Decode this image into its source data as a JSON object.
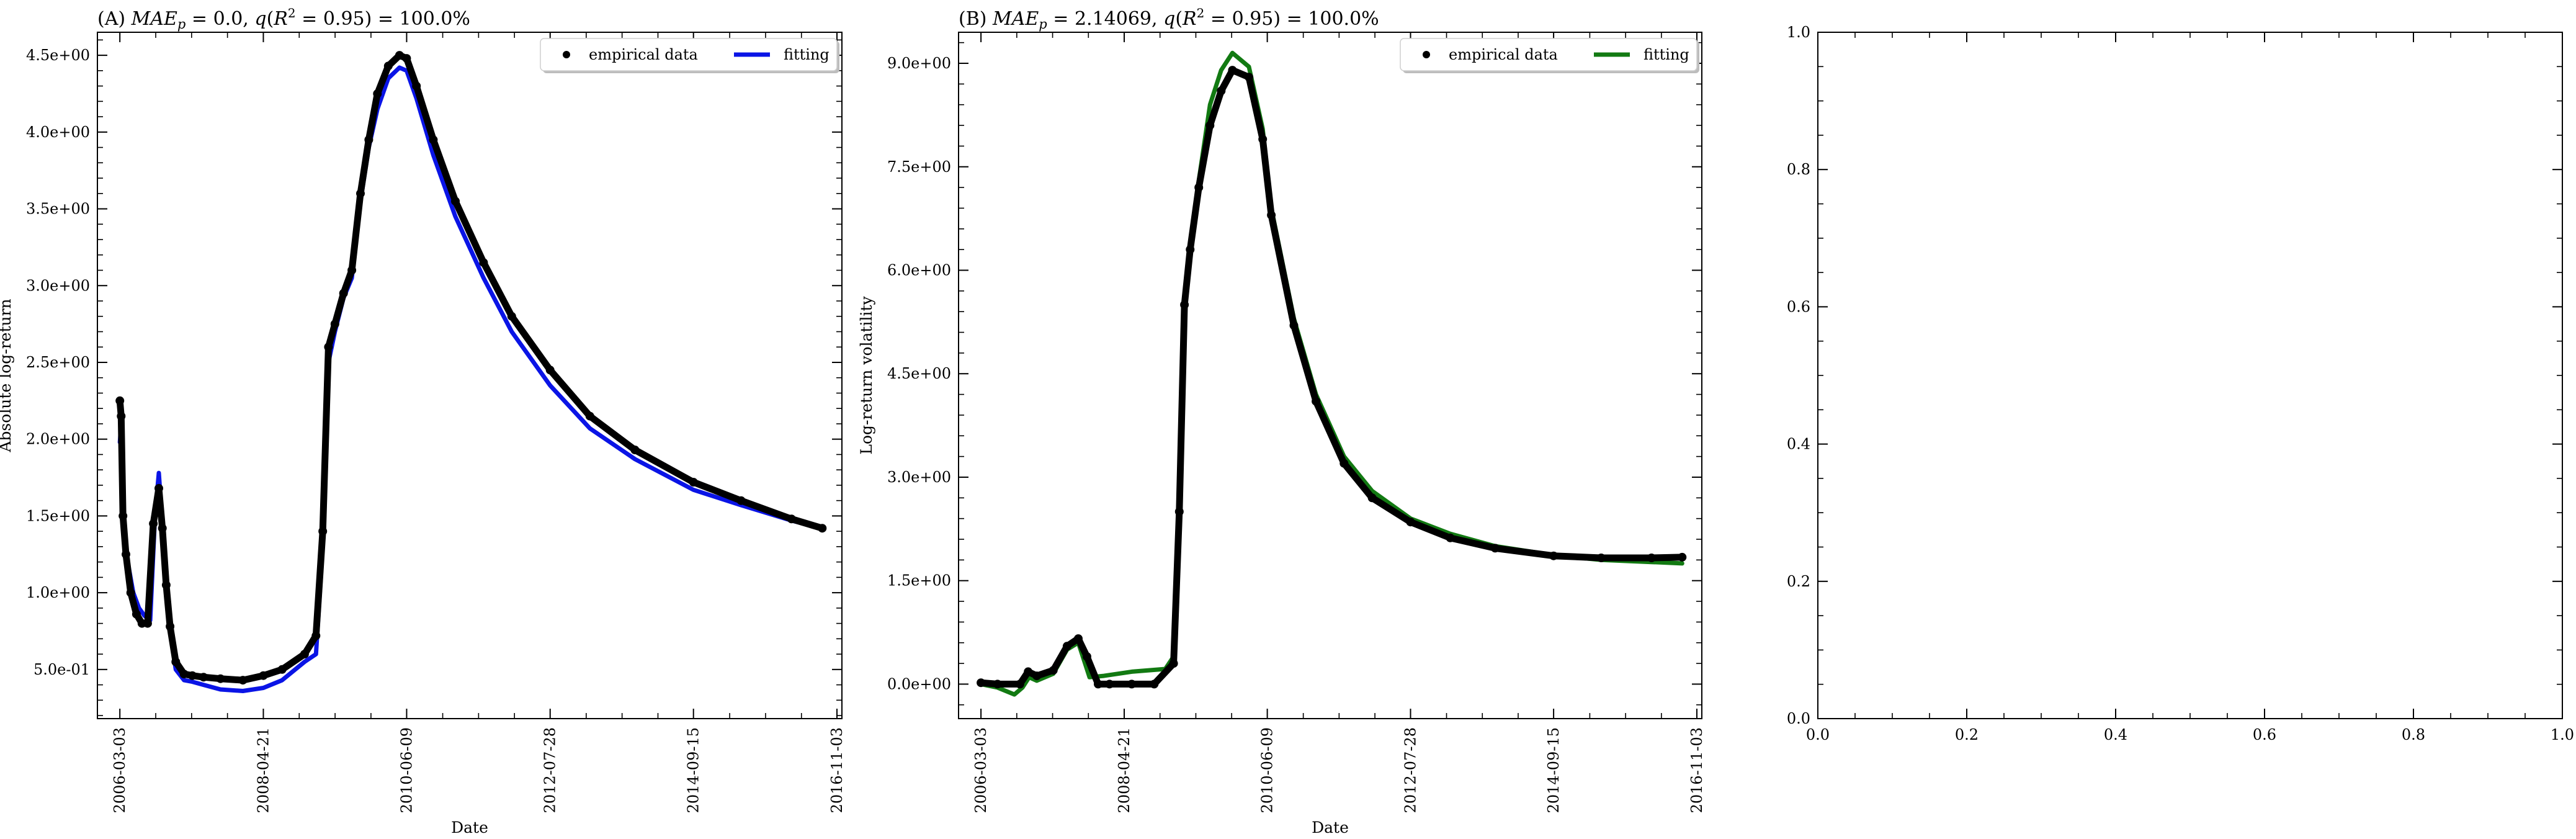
{
  "chart_data": [
    {
      "type": "line",
      "title": "(A) MAE_p = 0.0, q(R² = 0.95) = 100.0%",
      "title_parts": {
        "prefix": "(A) ",
        "mae_sym": "MAE",
        "mae_sub": "p",
        "mae_val": " = 0.0, ",
        "q_sym": "q",
        "q_mid": "(R",
        "q_sup": "2",
        "q_tail": " = 0.95) = 100.0%"
      },
      "xlabel": "Date",
      "ylabel": "Absolute log-return",
      "xlim": [
        "2005-11-01",
        "2016-11-30"
      ],
      "ylim": [
        0.18,
        4.65
      ],
      "x_ticks": [
        "2006-03-03",
        "2008-04-21",
        "2010-06-09",
        "2012-07-28",
        "2014-09-15",
        "2016-11-03"
      ],
      "y_ticks": [
        0.5,
        1.0,
        1.5,
        2.0,
        2.5,
        3.0,
        3.5,
        4.0,
        4.5
      ],
      "y_tick_labels": [
        "5.0e-01",
        "1.0e+00",
        "1.5e+00",
        "2.0e+00",
        "2.5e+00",
        "3.0e+00",
        "3.5e+00",
        "4.0e+00",
        "4.5e+00"
      ],
      "legend": {
        "position": "top-right",
        "entries": [
          "empirical data",
          "fitting"
        ]
      },
      "series": [
        {
          "name": "empirical data",
          "style": "dots",
          "color": "#000000",
          "x": [
            "2006-03-03",
            "2006-03-10",
            "2006-03-20",
            "2006-04-05",
            "2006-05-01",
            "2006-06-01",
            "2006-07-01",
            "2006-08-01",
            "2006-09-01",
            "2006-10-01",
            "2006-10-20",
            "2006-11-10",
            "2006-12-01",
            "2007-01-01",
            "2007-02-15",
            "2007-04-01",
            "2007-06-01",
            "2007-09-01",
            "2008-01-01",
            "2008-04-21",
            "2008-08-01",
            "2008-12-01",
            "2009-02-01",
            "2009-03-10",
            "2009-04-10",
            "2009-05-15",
            "2009-07-01",
            "2009-08-15",
            "2009-10-01",
            "2009-11-15",
            "2010-01-01",
            "2010-03-01",
            "2010-05-01",
            "2010-06-09",
            "2010-08-01",
            "2010-11-01",
            "2011-03-01",
            "2011-08-01",
            "2012-01-01",
            "2012-07-28",
            "2013-03-01",
            "2013-11-01",
            "2014-09-15",
            "2015-06-01",
            "2016-03-01",
            "2016-08-15"
          ],
          "y": [
            2.25,
            2.15,
            1.5,
            1.25,
            1.0,
            0.86,
            0.8,
            0.8,
            1.45,
            1.68,
            1.42,
            1.05,
            0.78,
            0.55,
            0.47,
            0.46,
            0.45,
            0.44,
            0.43,
            0.46,
            0.5,
            0.6,
            0.72,
            1.4,
            2.6,
            2.75,
            2.95,
            3.1,
            3.6,
            3.95,
            4.25,
            4.43,
            4.5,
            4.48,
            4.3,
            3.95,
            3.55,
            3.15,
            2.8,
            2.45,
            2.15,
            1.93,
            1.72,
            1.6,
            1.48,
            1.42
          ]
        },
        {
          "name": "fitting",
          "style": "line",
          "color": "#0a14e6",
          "x": [
            "2006-03-03",
            "2006-03-10",
            "2006-03-25",
            "2006-04-15",
            "2006-05-15",
            "2006-06-15",
            "2006-07-15",
            "2006-08-15",
            "2006-09-10",
            "2006-10-01",
            "2006-10-20",
            "2006-11-10",
            "2006-12-01",
            "2007-01-01",
            "2007-02-15",
            "2007-04-01",
            "2007-06-01",
            "2007-09-01",
            "2008-01-01",
            "2008-04-21",
            "2008-08-01",
            "2008-12-01",
            "2009-02-01",
            "2009-03-10",
            "2009-04-10",
            "2009-05-15",
            "2009-07-01",
            "2009-08-15",
            "2009-10-01",
            "2009-11-15",
            "2010-01-01",
            "2010-03-01",
            "2010-05-01",
            "2010-06-09",
            "2010-08-01",
            "2010-11-01",
            "2011-03-01",
            "2011-08-01",
            "2012-01-01",
            "2012-07-28",
            "2013-03-01",
            "2013-11-01",
            "2014-09-15",
            "2015-06-01",
            "2016-03-01",
            "2016-08-15"
          ],
          "y": [
            1.98,
            2.1,
            1.45,
            1.2,
            1.0,
            0.9,
            0.85,
            0.82,
            1.5,
            1.78,
            1.45,
            1.05,
            0.75,
            0.5,
            0.43,
            0.42,
            0.4,
            0.37,
            0.36,
            0.38,
            0.43,
            0.55,
            0.6,
            1.3,
            2.5,
            2.7,
            2.92,
            3.05,
            3.55,
            3.9,
            4.15,
            4.35,
            4.42,
            4.4,
            4.22,
            3.85,
            3.45,
            3.05,
            2.7,
            2.35,
            2.07,
            1.87,
            1.67,
            1.57,
            1.47,
            1.42
          ]
        }
      ]
    },
    {
      "type": "line",
      "title": "(B) MAE_p = 2.14069, q(R² = 0.95) = 100.0%",
      "title_parts": {
        "prefix": "(B) ",
        "mae_sym": "MAE",
        "mae_sub": "p",
        "mae_val": " = 2.14069, ",
        "q_sym": "q",
        "q_mid": "(R",
        "q_sup": "2",
        "q_tail": " = 0.95) = 100.0%"
      },
      "xlabel": "Date",
      "ylabel": "Log-return volatility",
      "xlim": [
        "2005-11-01",
        "2016-11-30"
      ],
      "ylim": [
        -0.5,
        9.45
      ],
      "x_ticks": [
        "2006-03-03",
        "2008-04-21",
        "2010-06-09",
        "2012-07-28",
        "2014-09-15",
        "2016-11-03"
      ],
      "y_ticks": [
        0,
        1.5,
        3.0,
        4.5,
        6.0,
        7.5,
        9.0
      ],
      "y_tick_labels": [
        "0.0e+00",
        "1.5e+00",
        "3.0e+00",
        "4.5e+00",
        "6.0e+00",
        "7.5e+00",
        "9.0e+00"
      ],
      "legend": {
        "position": "top-right",
        "entries": [
          "empirical data",
          "fitting"
        ]
      },
      "series": [
        {
          "name": "empirical data",
          "style": "dots",
          "color": "#000000",
          "x": [
            "2006-03-03",
            "2006-06-01",
            "2006-10-01",
            "2006-11-15",
            "2007-01-01",
            "2007-04-01",
            "2007-06-15",
            "2007-08-15",
            "2007-10-01",
            "2007-12-01",
            "2008-02-01",
            "2008-06-01",
            "2008-10-01",
            "2009-01-15",
            "2009-02-15",
            "2009-03-15",
            "2009-04-15",
            "2009-06-01",
            "2009-08-01",
            "2009-10-01",
            "2009-12-01",
            "2010-03-01",
            "2010-05-15",
            "2010-07-01",
            "2010-11-01",
            "2011-03-01",
            "2011-08-01",
            "2012-01-01",
            "2012-07-28",
            "2013-03-01",
            "2013-11-01",
            "2014-09-15",
            "2015-06-01",
            "2016-03-01",
            "2016-08-15"
          ],
          "y": [
            0.02,
            0.0,
            0.0,
            0.18,
            0.12,
            0.2,
            0.55,
            0.66,
            0.4,
            0.0,
            0.0,
            0.0,
            0.0,
            0.3,
            2.5,
            5.5,
            6.3,
            7.2,
            8.1,
            8.6,
            8.9,
            8.8,
            7.9,
            6.8,
            5.2,
            4.1,
            3.2,
            2.7,
            2.35,
            2.12,
            1.97,
            1.86,
            1.83,
            1.83,
            1.84
          ]
        },
        {
          "name": "fitting",
          "style": "line",
          "color": "#127a12",
          "x": [
            "2006-03-03",
            "2006-06-01",
            "2006-09-01",
            "2006-10-15",
            "2006-11-20",
            "2007-01-01",
            "2007-04-01",
            "2007-06-15",
            "2007-08-15",
            "2007-10-15",
            "2008-01-01",
            "2008-06-01",
            "2008-12-01",
            "2009-01-15",
            "2009-02-15",
            "2009-03-15",
            "2009-04-15",
            "2009-06-01",
            "2009-08-01",
            "2009-10-01",
            "2009-12-01",
            "2010-03-01",
            "2010-05-15",
            "2010-07-01",
            "2010-11-01",
            "2011-03-01",
            "2011-08-01",
            "2012-01-01",
            "2012-07-28",
            "2013-03-01",
            "2013-11-01",
            "2014-09-15",
            "2015-06-01",
            "2016-03-01",
            "2016-08-15"
          ],
          "y": [
            0.0,
            -0.05,
            -0.15,
            -0.05,
            0.1,
            0.05,
            0.15,
            0.5,
            0.6,
            0.1,
            0.12,
            0.18,
            0.22,
            0.4,
            2.6,
            5.4,
            6.2,
            7.3,
            8.4,
            8.9,
            9.15,
            8.95,
            8.05,
            6.9,
            5.3,
            4.2,
            3.3,
            2.8,
            2.4,
            2.18,
            2.0,
            1.87,
            1.8,
            1.77,
            1.75
          ]
        }
      ]
    },
    {
      "type": "line",
      "title": "",
      "xlim": [
        0,
        1
      ],
      "ylim": [
        0,
        1
      ],
      "x_ticks": [
        0.0,
        0.2,
        0.4,
        0.6,
        0.8,
        1.0
      ],
      "x_tick_labels": [
        "0.0",
        "0.2",
        "0.4",
        "0.6",
        "0.8",
        "1.0"
      ],
      "y_ticks": [
        0.0,
        0.2,
        0.4,
        0.6,
        0.8,
        1.0
      ],
      "y_tick_labels": [
        "0.0",
        "0.2",
        "0.4",
        "0.6",
        "0.8",
        "1.0"
      ],
      "series": []
    }
  ]
}
